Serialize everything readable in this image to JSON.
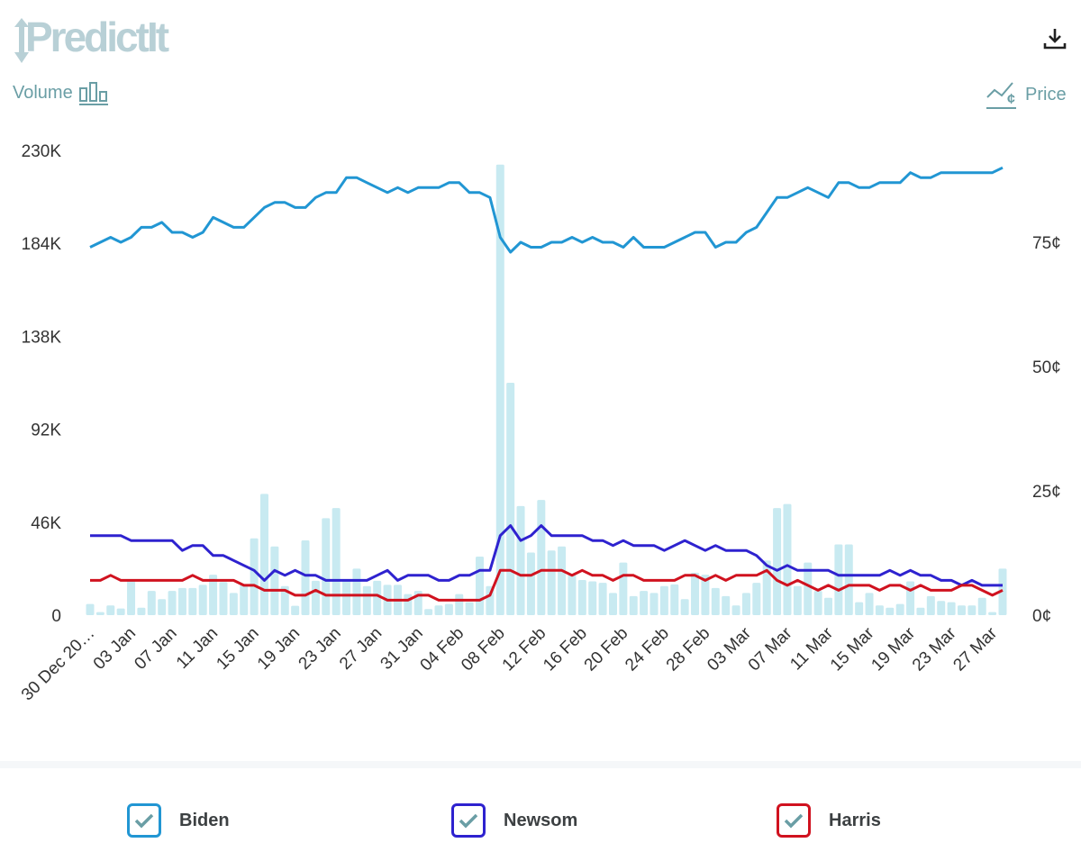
{
  "header": {
    "logo_text": "PredictIt",
    "volume_label": "Volume",
    "price_label": "Price",
    "volume_icon": "bar-chart-icon",
    "price_icon": "line-chart-cent-icon",
    "download_icon": "download-icon"
  },
  "legend": [
    {
      "label": "Biden",
      "color": "#2196d3",
      "checked": true
    },
    {
      "label": "Newsom",
      "color": "#2e22cf",
      "checked": true
    },
    {
      "label": "Harris",
      "color": "#d0121f",
      "checked": true
    }
  ],
  "chart_data": {
    "type": "line",
    "x": [
      "30 Dec",
      "31 Dec",
      "01 Jan",
      "02 Jan",
      "03 Jan",
      "04 Jan",
      "05 Jan",
      "06 Jan",
      "07 Jan",
      "08 Jan",
      "09 Jan",
      "10 Jan",
      "11 Jan",
      "12 Jan",
      "13 Jan",
      "14 Jan",
      "15 Jan",
      "16 Jan",
      "17 Jan",
      "18 Jan",
      "19 Jan",
      "20 Jan",
      "21 Jan",
      "22 Jan",
      "23 Jan",
      "24 Jan",
      "25 Jan",
      "26 Jan",
      "27 Jan",
      "28 Jan",
      "29 Jan",
      "30 Jan",
      "31 Jan",
      "01 Feb",
      "02 Feb",
      "03 Feb",
      "04 Feb",
      "05 Feb",
      "06 Feb",
      "07 Feb",
      "08 Feb",
      "09 Feb",
      "10 Feb",
      "11 Feb",
      "12 Feb",
      "13 Feb",
      "14 Feb",
      "15 Feb",
      "16 Feb",
      "17 Feb",
      "18 Feb",
      "19 Feb",
      "20 Feb",
      "21 Feb",
      "22 Feb",
      "23 Feb",
      "24 Feb",
      "25 Feb",
      "26 Feb",
      "27 Feb",
      "28 Feb",
      "01 Mar",
      "02 Mar",
      "03 Mar",
      "04 Mar",
      "05 Mar",
      "06 Mar",
      "07 Mar",
      "08 Mar",
      "09 Mar",
      "10 Mar",
      "11 Mar",
      "12 Mar",
      "13 Mar",
      "14 Mar",
      "15 Mar",
      "16 Mar",
      "17 Mar",
      "18 Mar",
      "19 Mar",
      "20 Mar",
      "21 Mar",
      "22 Mar",
      "23 Mar",
      "24 Mar",
      "25 Mar",
      "26 Mar",
      "27 Mar",
      "28 Mar",
      "29 Mar"
    ],
    "x_tick_labels": [
      "30 Dec 20…",
      "03 Jan",
      "07 Jan",
      "11 Jan",
      "15 Jan",
      "19 Jan",
      "23 Jan",
      "27 Jan",
      "31 Jan",
      "04 Feb",
      "08 Feb",
      "12 Feb",
      "16 Feb",
      "20 Feb",
      "24 Feb",
      "28 Feb",
      "03 Mar",
      "07 Mar",
      "11 Mar",
      "15 Mar",
      "19 Mar",
      "23 Mar",
      "27 Mar"
    ],
    "y_left": {
      "label": "Volume",
      "ticks": [
        "0",
        "46K",
        "92K",
        "138K",
        "184K",
        "230K"
      ],
      "range": [
        0,
        230000
      ]
    },
    "y_right": {
      "label": "Price",
      "ticks": [
        "0¢",
        "25¢",
        "50¢",
        "75¢"
      ],
      "range": [
        0,
        100
      ]
    },
    "volume": {
      "color": "#c8eaf1",
      "values_k": [
        5.5,
        1.5,
        4.8,
        3.3,
        17,
        3.7,
        12,
        7.9,
        12,
        13.4,
        13.4,
        15,
        20,
        16.4,
        11,
        15,
        38,
        60,
        34,
        14.4,
        4.6,
        37,
        17,
        48,
        53,
        17,
        23,
        14.4,
        17,
        15,
        15,
        10.4,
        12,
        3,
        4.8,
        5.5,
        10.4,
        6.4,
        29,
        14.4,
        223,
        115,
        54,
        31,
        57,
        32,
        34,
        20,
        17.4,
        16.7,
        16,
        11,
        26,
        9.4,
        12,
        11,
        14.4,
        15.2,
        7.9,
        21,
        20,
        13.4,
        9.4,
        4.8,
        11,
        16,
        27,
        53,
        55,
        14.4,
        26,
        12,
        8.6,
        35,
        35,
        6.4,
        11,
        4.8,
        3.7,
        5.5,
        16.7,
        3.7,
        9.4,
        7,
        6.4,
        4.8,
        4.8,
        8.6,
        1.5,
        23
      ]
    },
    "series": [
      {
        "name": "Biden",
        "color": "#2196d3",
        "values": [
          74,
          75,
          76,
          75,
          76,
          78,
          78,
          79,
          77,
          77,
          76,
          77,
          80,
          79,
          78,
          78,
          80,
          82,
          83,
          83,
          82,
          82,
          84,
          85,
          85,
          88,
          88,
          87,
          86,
          85,
          86,
          85,
          86,
          86,
          86,
          87,
          87,
          85,
          85,
          84,
          76,
          73,
          75,
          74,
          74,
          75,
          75,
          76,
          75,
          76,
          75,
          75,
          74,
          76,
          74,
          74,
          74,
          75,
          76,
          77,
          77,
          74,
          75,
          75,
          77,
          78,
          81,
          84,
          84,
          85,
          86,
          85,
          84,
          87,
          87,
          86,
          86,
          87,
          87,
          87,
          89,
          88,
          88,
          89,
          89,
          89,
          89,
          89,
          89,
          90
        ]
      },
      {
        "name": "Newsom",
        "color": "#2e22cf",
        "values": [
          16,
          16,
          16,
          16,
          15,
          15,
          15,
          15,
          15,
          13,
          14,
          14,
          12,
          12,
          11,
          10,
          9,
          7,
          9,
          8,
          9,
          8,
          8,
          7,
          7,
          7,
          7,
          7,
          8,
          9,
          7,
          8,
          8,
          8,
          7,
          7,
          8,
          8,
          9,
          9,
          16,
          18,
          15,
          16,
          18,
          16,
          16,
          16,
          16,
          15,
          15,
          14,
          15,
          14,
          14,
          14,
          13,
          14,
          15,
          14,
          13,
          14,
          13,
          13,
          13,
          12,
          10,
          9,
          10,
          9,
          9,
          9,
          9,
          8,
          8,
          8,
          8,
          8,
          9,
          8,
          9,
          8,
          8,
          7,
          7,
          6,
          7,
          6,
          6,
          6
        ]
      },
      {
        "name": "Harris",
        "color": "#d0121f",
        "values": [
          7,
          7,
          8,
          7,
          7,
          7,
          7,
          7,
          7,
          7,
          8,
          7,
          7,
          7,
          7,
          6,
          6,
          5,
          5,
          5,
          4,
          4,
          5,
          4,
          4,
          4,
          4,
          4,
          4,
          3,
          3,
          3,
          4,
          4,
          3,
          3,
          3,
          3,
          3,
          4,
          9,
          9,
          8,
          8,
          9,
          9,
          9,
          8,
          9,
          8,
          8,
          7,
          8,
          8,
          7,
          7,
          7,
          7,
          8,
          8,
          7,
          8,
          7,
          8,
          8,
          8,
          9,
          7,
          6,
          7,
          6,
          5,
          6,
          5,
          6,
          6,
          6,
          5,
          6,
          6,
          5,
          6,
          5,
          5,
          5,
          6,
          6,
          5,
          4,
          5
        ]
      }
    ],
    "grid": false,
    "legend_position": "bottom"
  }
}
